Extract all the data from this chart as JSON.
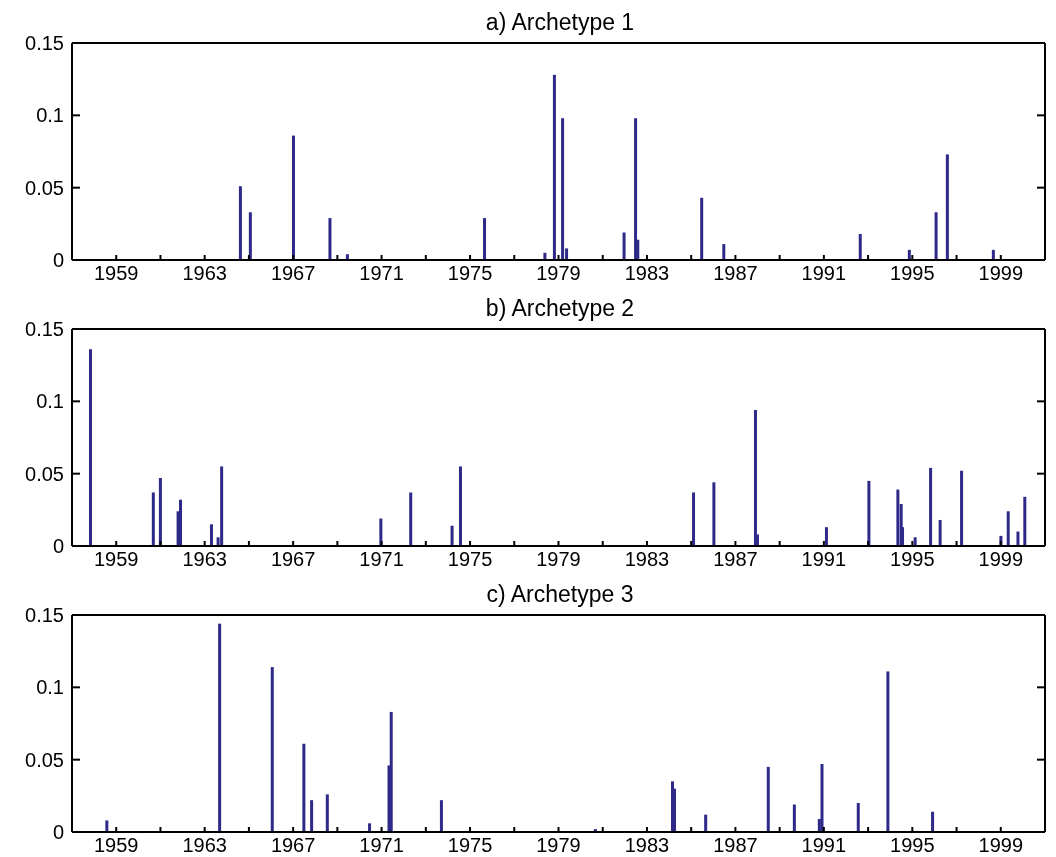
{
  "chart_data": [
    {
      "type": "bar",
      "title": "a) Archetype 1",
      "color": "#2e2a8a",
      "x": [
        1964.62,
        1965.07,
        1967.02,
        1968.67,
        1969.46,
        1975.66,
        1978.39,
        1978.82,
        1979.19,
        1979.37,
        1981.97,
        1982.49,
        1982.59,
        1985.48,
        1986.48,
        1992.65,
        1994.87,
        1996.08,
        1996.59,
        1998.67
      ],
      "values": [
        0.051,
        0.033,
        0.086,
        0.029,
        0.004,
        0.029,
        0.005,
        0.128,
        0.098,
        0.008,
        0.019,
        0.098,
        0.014,
        0.043,
        0.011,
        0.018,
        0.007,
        0.033,
        0.073,
        0.007
      ],
      "xlim": [
        1957,
        2001
      ],
      "ylim": [
        0,
        0.15
      ],
      "xticks": [
        1959,
        {
          "value": 1961,
          "label": null
        },
        1963,
        {
          "value": 1965,
          "label": null
        },
        1967,
        {
          "value": 1969,
          "label": null
        },
        1971,
        {
          "value": 1973,
          "label": null
        },
        1975,
        {
          "value": 1977,
          "label": null
        },
        1979,
        {
          "value": 1981,
          "label": null
        },
        1983,
        {
          "value": 1985,
          "label": null
        },
        1987,
        {
          "value": 1989,
          "label": null
        },
        1991,
        {
          "value": 1993,
          "label": null
        },
        1995,
        {
          "value": 1997,
          "label": null
        },
        1999
      ],
      "yticks": [
        0,
        0.05,
        0.1,
        0.15
      ],
      "grid": false,
      "legend": false
    },
    {
      "type": "bar",
      "title": "b) Archetype 2",
      "color": "#2e2a8a",
      "x": [
        1957.84,
        1960.68,
        1961.0,
        1961.8,
        1961.91,
        1963.31,
        1963.61,
        1963.77,
        1970.97,
        1972.32,
        1974.19,
        1974.57,
        1985.11,
        1986.03,
        1987.91,
        1988.0,
        1991.12,
        1993.04,
        1994.35,
        1994.5,
        1994.56,
        1995.13,
        1995.83,
        1996.26,
        1997.23,
        1999.01,
        1999.34,
        1999.78,
        2000.09
      ],
      "values": [
        0.136,
        0.037,
        0.047,
        0.024,
        0.032,
        0.015,
        0.006,
        0.055,
        0.019,
        0.037,
        0.014,
        0.055,
        0.037,
        0.044,
        0.094,
        0.008,
        0.013,
        0.045,
        0.039,
        0.029,
        0.013,
        0.006,
        0.054,
        0.018,
        0.052,
        0.007,
        0.024,
        0.01,
        0.034
      ],
      "xlim": [
        1957,
        2001
      ],
      "ylim": [
        0,
        0.15
      ],
      "xticks": [
        1959,
        {
          "value": 1961,
          "label": null
        },
        1963,
        {
          "value": 1965,
          "label": null
        },
        1967,
        {
          "value": 1969,
          "label": null
        },
        1971,
        {
          "value": 1973,
          "label": null
        },
        1975,
        {
          "value": 1977,
          "label": null
        },
        1979,
        {
          "value": 1981,
          "label": null
        },
        1983,
        {
          "value": 1985,
          "label": null
        },
        1987,
        {
          "value": 1989,
          "label": null
        },
        1991,
        {
          "value": 1993,
          "label": null
        },
        1995,
        {
          "value": 1997,
          "label": null
        },
        1999
      ],
      "yticks": [
        0,
        0.05,
        0.1,
        0.15
      ],
      "grid": false,
      "legend": false
    },
    {
      "type": "bar",
      "title": "c) Archetype 3",
      "color": "#2e2a8a",
      "x": [
        1958.58,
        1963.68,
        1966.06,
        1967.49,
        1967.84,
        1968.55,
        1970.46,
        1971.34,
        1971.44,
        1973.71,
        1980.67,
        1984.16,
        1984.25,
        1985.66,
        1988.49,
        1989.67,
        1990.8,
        1990.92,
        1992.56,
        1993.9,
        1995.92
      ],
      "values": [
        0.008,
        0.144,
        0.114,
        0.061,
        0.022,
        0.026,
        0.006,
        0.046,
        0.083,
        0.022,
        0.002,
        0.035,
        0.03,
        0.012,
        0.045,
        0.019,
        0.009,
        0.047,
        0.02,
        0.111,
        0.014
      ],
      "xlim": [
        1957,
        2001
      ],
      "ylim": [
        0,
        0.15
      ],
      "xticks": [
        1959,
        {
          "value": 1961,
          "label": null
        },
        1963,
        {
          "value": 1965,
          "label": null
        },
        1967,
        {
          "value": 1969,
          "label": null
        },
        1971,
        {
          "value": 1973,
          "label": null
        },
        1975,
        {
          "value": 1977,
          "label": null
        },
        1979,
        {
          "value": 1981,
          "label": null
        },
        1983,
        {
          "value": 1985,
          "label": null
        },
        1987,
        {
          "value": 1989,
          "label": null
        },
        1991,
        {
          "value": 1993,
          "label": null
        },
        1995,
        {
          "value": 1997,
          "label": null
        },
        1999
      ],
      "yticks": [
        0,
        0.05,
        0.1,
        0.15
      ],
      "grid": false,
      "legend": false
    }
  ]
}
